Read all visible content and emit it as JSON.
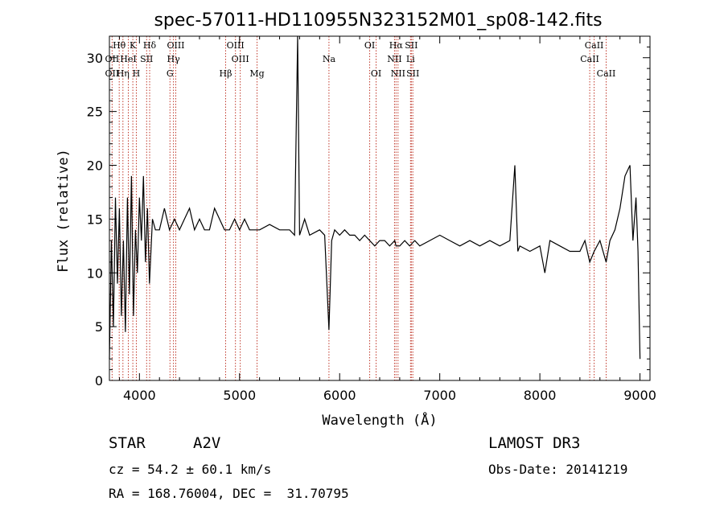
{
  "chart_data": {
    "type": "line",
    "title": "spec-57011-HD110955N323152M01_sp08-142.fits",
    "xlabel": "Wavelength (Å)",
    "ylabel": "Flux (relative)",
    "xlim": [
      3700,
      9100
    ],
    "ylim": [
      0,
      32
    ],
    "xticks": [
      4000,
      5000,
      6000,
      7000,
      8000,
      9000
    ],
    "yticks": [
      0,
      5,
      10,
      15,
      20,
      25,
      30
    ],
    "series": [
      {
        "name": "flux",
        "x": [
          3700,
          3720,
          3740,
          3760,
          3780,
          3800,
          3820,
          3840,
          3860,
          3880,
          3900,
          3920,
          3940,
          3960,
          3980,
          4000,
          4020,
          4040,
          4060,
          4080,
          4100,
          4130,
          4160,
          4200,
          4250,
          4300,
          4350,
          4400,
          4450,
          4500,
          4550,
          4600,
          4650,
          4700,
          4750,
          4800,
          4850,
          4870,
          4900,
          4950,
          5000,
          5050,
          5100,
          5150,
          5200,
          5300,
          5400,
          5500,
          5550,
          5580,
          5600,
          5650,
          5700,
          5800,
          5850,
          5893,
          5920,
          5950,
          6000,
          6050,
          6100,
          6150,
          6200,
          6250,
          6300,
          6350,
          6400,
          6450,
          6500,
          6550,
          6563,
          6600,
          6650,
          6700,
          6750,
          6800,
          6900,
          7000,
          7100,
          7200,
          7300,
          7400,
          7500,
          7600,
          7700,
          7750,
          7780,
          7800,
          7900,
          8000,
          8050,
          8100,
          8200,
          8300,
          8400,
          8450,
          8498,
          8542,
          8600,
          8662,
          8700,
          8750,
          8800,
          8850,
          8900,
          8930,
          8960,
          8980,
          9000
        ],
        "y": [
          2,
          13,
          5,
          17,
          9,
          16,
          6,
          13,
          4.5,
          17,
          8,
          19,
          6,
          14,
          10,
          17,
          13,
          19,
          11,
          16,
          9,
          15,
          14,
          14,
          16,
          14,
          15,
          14,
          15,
          16,
          14,
          15,
          14,
          14,
          16,
          15,
          14,
          14,
          14,
          15,
          14,
          15,
          14,
          14,
          14,
          14.5,
          14,
          14,
          13.5,
          32,
          13.5,
          15,
          13.5,
          14,
          13.5,
          4.7,
          13,
          14,
          13.5,
          14,
          13.5,
          13.5,
          13,
          13.5,
          13,
          12.5,
          13,
          13,
          12.5,
          13,
          12.5,
          12.5,
          13,
          12.5,
          13,
          12.5,
          13,
          13.5,
          13,
          12.5,
          13,
          12.5,
          13,
          12.5,
          13,
          20,
          12,
          12.5,
          12,
          12.5,
          10,
          13,
          12.5,
          12,
          12,
          13,
          11,
          12,
          13,
          11,
          13,
          14,
          16,
          19,
          20,
          13,
          17,
          12,
          2
        ]
      }
    ],
    "emission_lines": [
      {
        "name": "Hθ",
        "x": 3798,
        "row": 1
      },
      {
        "name": "OII",
        "x": 3727,
        "row": 2
      },
      {
        "name": "OII",
        "x": 3727,
        "row": 3
      },
      {
        "name": "Hη",
        "x": 3835,
        "row": 3
      },
      {
        "name": "HeI",
        "x": 3889,
        "row": 2
      },
      {
        "name": "K",
        "x": 3934,
        "row": 1
      },
      {
        "name": "H",
        "x": 3969,
        "row": 3
      },
      {
        "name": "SII",
        "x": 4072,
        "row": 2
      },
      {
        "name": "Hδ",
        "x": 4102,
        "row": 1
      },
      {
        "name": "OIII",
        "x": 4363,
        "row": 1
      },
      {
        "name": "Hγ",
        "x": 4340,
        "row": 2
      },
      {
        "name": "G",
        "x": 4305,
        "row": 3
      },
      {
        "name": "OIII",
        "x": 4959,
        "row": 1
      },
      {
        "name": "OIII",
        "x": 5007,
        "row": 2
      },
      {
        "name": "Hβ",
        "x": 4861,
        "row": 3
      },
      {
        "name": "Mg",
        "x": 5175,
        "row": 3
      },
      {
        "name": "Na",
        "x": 5893,
        "row": 2
      },
      {
        "name": "OI",
        "x": 6300,
        "row": 1
      },
      {
        "name": "OI",
        "x": 6364,
        "row": 3
      },
      {
        "name": "Hα",
        "x": 6563,
        "row": 1
      },
      {
        "name": "SII",
        "x": 6716,
        "row": 1
      },
      {
        "name": "NII",
        "x": 6548,
        "row": 2
      },
      {
        "name": "Li",
        "x": 6708,
        "row": 2
      },
      {
        "name": "NII",
        "x": 6583,
        "row": 3
      },
      {
        "name": "SII",
        "x": 6731,
        "row": 3
      },
      {
        "name": "CaII",
        "x": 8542,
        "row": 1
      },
      {
        "name": "CaII",
        "x": 8498,
        "row": 2
      },
      {
        "name": "CaII",
        "x": 8662,
        "row": 3
      }
    ]
  },
  "info": {
    "object_class": "STAR",
    "subclass": "A2V",
    "survey": "LAMOST DR3",
    "cz": "cz = 54.2 ± 60.1 km/s",
    "obs_date": "Obs-Date: 20141219",
    "coords": "RA = 168.76004, DEC =  31.70795"
  },
  "colors": {
    "line_marker": "#c0392b",
    "spectrum": "#000000",
    "axes": "#000000"
  }
}
